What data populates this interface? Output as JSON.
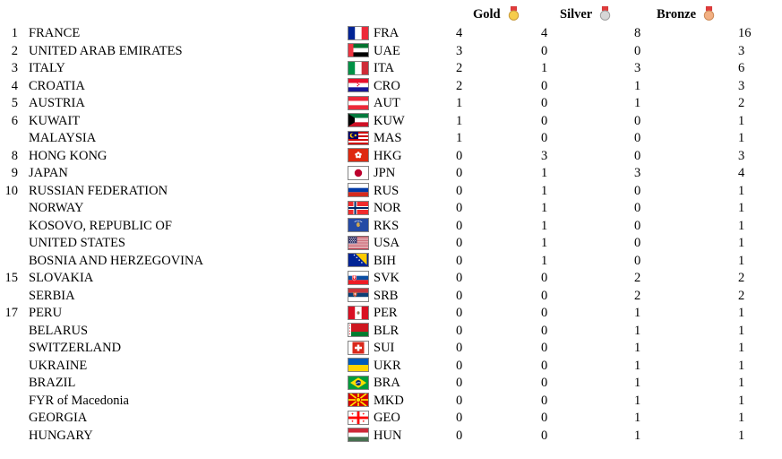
{
  "header": {
    "gold_label": "Gold",
    "silver_label": "Silver",
    "bronze_label": "Bronze",
    "medal_colors": {
      "gold": "#F6CD4B",
      "gold_edge": "#C89B3C",
      "silver": "#D6D6D6",
      "silver_edge": "#9E9E9E",
      "bronze": "#F2B083",
      "bronze_edge": "#CC8A57",
      "ribbon": "#E23B3B"
    }
  },
  "rows": [
    {
      "rank": "1",
      "country": "FRANCE",
      "code": "FRA",
      "flag_icon": "flag-france-icon",
      "gold": "4",
      "silver": "4",
      "bronze": "8",
      "total": "16"
    },
    {
      "rank": "2",
      "country": "UNITED ARAB EMIRATES",
      "code": "UAE",
      "flag_icon": "flag-united-arab-emirates-icon",
      "gold": "3",
      "silver": "0",
      "bronze": "0",
      "total": "3"
    },
    {
      "rank": "3",
      "country": "ITALY",
      "code": "ITA",
      "flag_icon": "flag-italy-icon",
      "gold": "2",
      "silver": "1",
      "bronze": "3",
      "total": "6"
    },
    {
      "rank": "4",
      "country": "CROATIA",
      "code": "CRO",
      "flag_icon": "flag-croatia-icon",
      "gold": "2",
      "silver": "0",
      "bronze": "1",
      "total": "3"
    },
    {
      "rank": "5",
      "country": "AUSTRIA",
      "code": "AUT",
      "flag_icon": "flag-austria-icon",
      "gold": "1",
      "silver": "0",
      "bronze": "1",
      "total": "2"
    },
    {
      "rank": "6",
      "country": "KUWAIT",
      "code": "KUW",
      "flag_icon": "flag-kuwait-icon",
      "gold": "1",
      "silver": "0",
      "bronze": "0",
      "total": "1"
    },
    {
      "rank": "",
      "country": "MALAYSIA",
      "code": "MAS",
      "flag_icon": "flag-malaysia-icon",
      "gold": "1",
      "silver": "0",
      "bronze": "0",
      "total": "1"
    },
    {
      "rank": "8",
      "country": "HONG KONG",
      "code": "HKG",
      "flag_icon": "flag-hong-kong-icon",
      "gold": "0",
      "silver": "3",
      "bronze": "0",
      "total": "3"
    },
    {
      "rank": "9",
      "country": "JAPAN",
      "code": "JPN",
      "flag_icon": "flag-japan-icon",
      "gold": "0",
      "silver": "1",
      "bronze": "3",
      "total": "4"
    },
    {
      "rank": "10",
      "country": "RUSSIAN FEDERATION",
      "code": "RUS",
      "flag_icon": "flag-russia-icon",
      "gold": "0",
      "silver": "1",
      "bronze": "0",
      "total": "1"
    },
    {
      "rank": "",
      "country": "NORWAY",
      "code": "NOR",
      "flag_icon": "flag-norway-icon",
      "gold": "0",
      "silver": "1",
      "bronze": "0",
      "total": "1"
    },
    {
      "rank": "",
      "country": "KOSOVO, REPUBLIC OF",
      "code": "RKS",
      "flag_icon": "flag-kosovo-icon",
      "gold": "0",
      "silver": "1",
      "bronze": "0",
      "total": "1"
    },
    {
      "rank": "",
      "country": "UNITED STATES",
      "code": "USA",
      "flag_icon": "flag-united-states-icon",
      "gold": "0",
      "silver": "1",
      "bronze": "0",
      "total": "1"
    },
    {
      "rank": "",
      "country": "BOSNIA AND HERZEGOVINA",
      "code": "BIH",
      "flag_icon": "flag-bosnia-herzegovina-icon",
      "gold": "0",
      "silver": "1",
      "bronze": "0",
      "total": "1"
    },
    {
      "rank": "15",
      "country": "SLOVAKIA",
      "code": "SVK",
      "flag_icon": "flag-slovakia-icon",
      "gold": "0",
      "silver": "0",
      "bronze": "2",
      "total": "2"
    },
    {
      "rank": "",
      "country": "SERBIA",
      "code": "SRB",
      "flag_icon": "flag-serbia-icon",
      "gold": "0",
      "silver": "0",
      "bronze": "2",
      "total": "2"
    },
    {
      "rank": "17",
      "country": "PERU",
      "code": "PER",
      "flag_icon": "flag-peru-icon",
      "gold": "0",
      "silver": "0",
      "bronze": "1",
      "total": "1"
    },
    {
      "rank": "",
      "country": "BELARUS",
      "code": "BLR",
      "flag_icon": "flag-belarus-icon",
      "gold": "0",
      "silver": "0",
      "bronze": "1",
      "total": "1"
    },
    {
      "rank": "",
      "country": "SWITZERLAND",
      "code": "SUI",
      "flag_icon": "flag-switzerland-icon",
      "gold": "0",
      "silver": "0",
      "bronze": "1",
      "total": "1"
    },
    {
      "rank": "",
      "country": "UKRAINE",
      "code": "UKR",
      "flag_icon": "flag-ukraine-icon",
      "gold": "0",
      "silver": "0",
      "bronze": "1",
      "total": "1"
    },
    {
      "rank": "",
      "country": "BRAZIL",
      "code": "BRA",
      "flag_icon": "flag-brazil-icon",
      "gold": "0",
      "silver": "0",
      "bronze": "1",
      "total": "1"
    },
    {
      "rank": "",
      "country": "FYR of Macedonia",
      "code": "MKD",
      "flag_icon": "flag-macedonia-icon",
      "gold": "0",
      "silver": "0",
      "bronze": "1",
      "total": "1"
    },
    {
      "rank": "",
      "country": "GEORGIA",
      "code": "GEO",
      "flag_icon": "flag-georgia-icon",
      "gold": "0",
      "silver": "0",
      "bronze": "1",
      "total": "1"
    },
    {
      "rank": "",
      "country": "HUNGARY",
      "code": "HUN",
      "flag_icon": "flag-hungary-icon",
      "gold": "0",
      "silver": "0",
      "bronze": "1",
      "total": "1"
    }
  ]
}
